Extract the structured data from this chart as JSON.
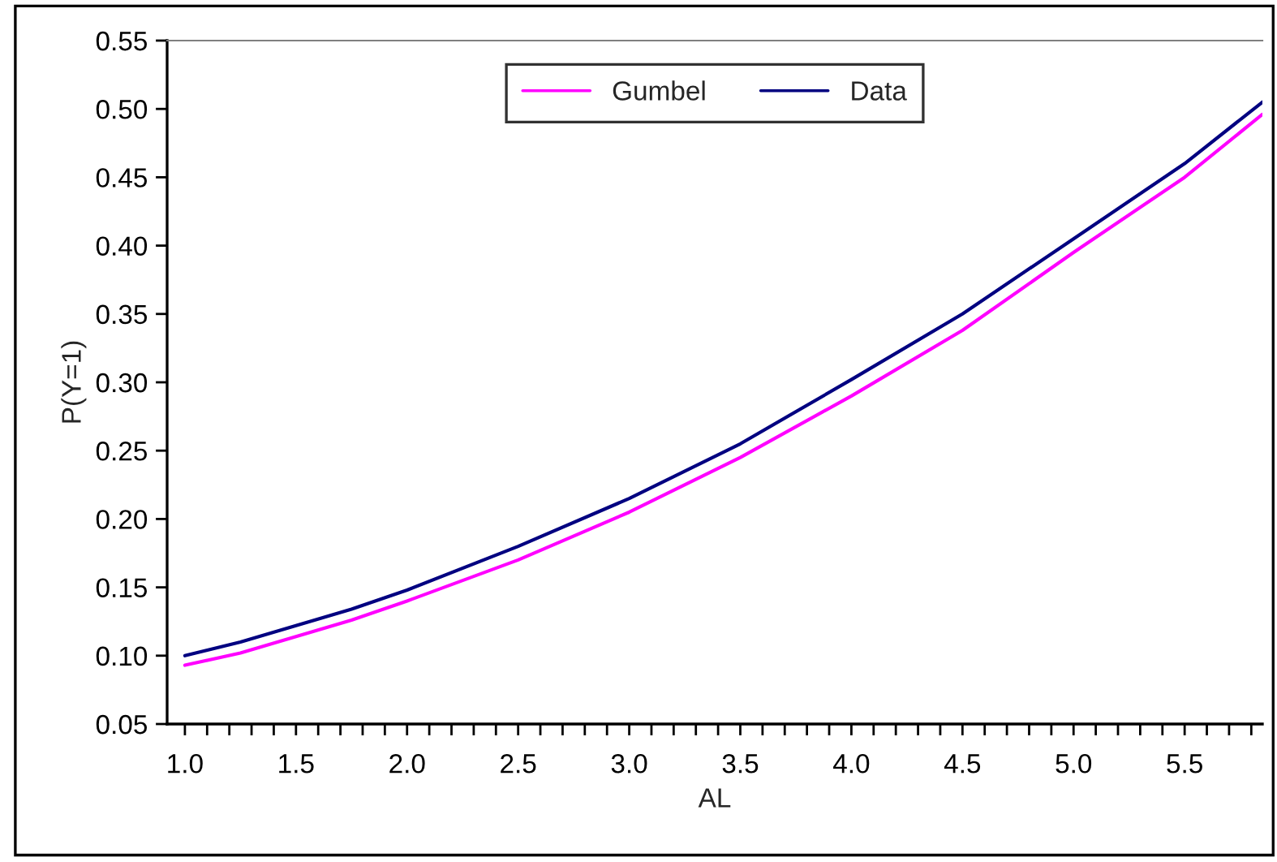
{
  "chart_data": {
    "type": "line",
    "xlabel": "AL",
    "ylabel": "P(Y=1)",
    "series": [
      {
        "name": "Gumbel",
        "color": "#ff00ff",
        "x": [
          1.0,
          1.25,
          1.5,
          1.75,
          2.0,
          2.5,
          3.0,
          3.5,
          4.0,
          4.5,
          5.0,
          5.5,
          5.85
        ],
        "values": [
          0.093,
          0.102,
          0.114,
          0.126,
          0.14,
          0.17,
          0.205,
          0.245,
          0.29,
          0.338,
          0.395,
          0.45,
          0.496
        ]
      },
      {
        "name": "Data",
        "color": "#000080",
        "x": [
          1.0,
          1.25,
          1.5,
          1.75,
          2.0,
          2.5,
          3.0,
          3.5,
          4.0,
          4.5,
          5.0,
          5.5,
          5.85
        ],
        "values": [
          0.1,
          0.11,
          0.122,
          0.134,
          0.148,
          0.18,
          0.215,
          0.255,
          0.302,
          0.35,
          0.405,
          0.46,
          0.505
        ]
      }
    ],
    "xlim": [
      0.92,
      5.85
    ],
    "xticks": [
      {
        "value": 1.0,
        "label": "1.0"
      },
      {
        "value": 1.1,
        "label": null
      },
      {
        "value": 1.2,
        "label": null
      },
      {
        "value": 1.3,
        "label": null
      },
      {
        "value": 1.4,
        "label": null
      },
      {
        "value": 1.5,
        "label": "1.5"
      },
      {
        "value": 1.6,
        "label": null
      },
      {
        "value": 1.7,
        "label": null
      },
      {
        "value": 1.8,
        "label": null
      },
      {
        "value": 1.9,
        "label": null
      },
      {
        "value": 2.0,
        "label": "2.0"
      },
      {
        "value": 2.1,
        "label": null
      },
      {
        "value": 2.2,
        "label": null
      },
      {
        "value": 2.3,
        "label": null
      },
      {
        "value": 2.4,
        "label": null
      },
      {
        "value": 2.5,
        "label": "2.5"
      },
      {
        "value": 2.6,
        "label": null
      },
      {
        "value": 2.7,
        "label": null
      },
      {
        "value": 2.8,
        "label": null
      },
      {
        "value": 2.9,
        "label": null
      },
      {
        "value": 3.0,
        "label": "3.0"
      },
      {
        "value": 3.1,
        "label": null
      },
      {
        "value": 3.2,
        "label": null
      },
      {
        "value": 3.3,
        "label": null
      },
      {
        "value": 3.4,
        "label": null
      },
      {
        "value": 3.5,
        "label": "3.5"
      },
      {
        "value": 3.6,
        "label": null
      },
      {
        "value": 3.7,
        "label": null
      },
      {
        "value": 3.8,
        "label": null
      },
      {
        "value": 3.9,
        "label": null
      },
      {
        "value": 4.0,
        "label": "4.0"
      },
      {
        "value": 4.1,
        "label": null
      },
      {
        "value": 4.2,
        "label": null
      },
      {
        "value": 4.3,
        "label": null
      },
      {
        "value": 4.4,
        "label": null
      },
      {
        "value": 4.5,
        "label": "4.5"
      },
      {
        "value": 4.6,
        "label": null
      },
      {
        "value": 4.7,
        "label": null
      },
      {
        "value": 4.8,
        "label": null
      },
      {
        "value": 4.9,
        "label": null
      },
      {
        "value": 5.0,
        "label": "5.0"
      },
      {
        "value": 5.1,
        "label": null
      },
      {
        "value": 5.2,
        "label": null
      },
      {
        "value": 5.3,
        "label": null
      },
      {
        "value": 5.4,
        "label": null
      },
      {
        "value": 5.5,
        "label": "5.5"
      },
      {
        "value": 5.6,
        "label": null
      },
      {
        "value": 5.7,
        "label": null
      },
      {
        "value": 5.8,
        "label": null
      }
    ],
    "ylim": [
      0.05,
      0.55
    ],
    "yticks": [
      {
        "value": 0.05,
        "label": "0.05"
      },
      {
        "value": 0.1,
        "label": "0.10"
      },
      {
        "value": 0.15,
        "label": "0.15"
      },
      {
        "value": 0.2,
        "label": "0.20"
      },
      {
        "value": 0.25,
        "label": "0.25"
      },
      {
        "value": 0.3,
        "label": "0.30"
      },
      {
        "value": 0.35,
        "label": "0.35"
      },
      {
        "value": 0.4,
        "label": "0.40"
      },
      {
        "value": 0.45,
        "label": "0.45"
      },
      {
        "value": 0.5,
        "label": "0.50"
      },
      {
        "value": 0.55,
        "label": "0.55"
      }
    ],
    "legend": "top",
    "grid": false
  }
}
